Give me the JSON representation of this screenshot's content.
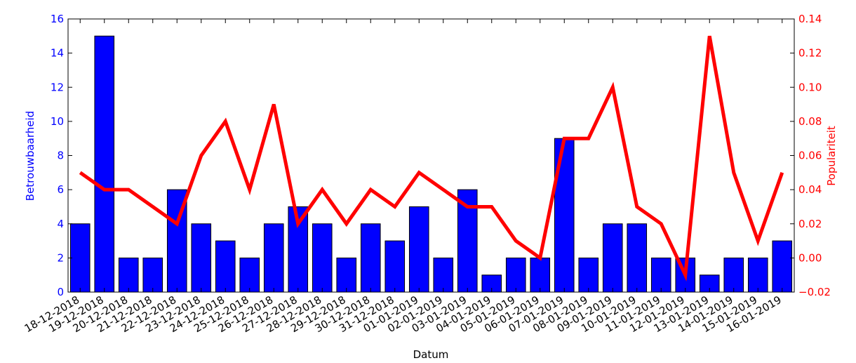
{
  "chart_data": {
    "type": "bar-line",
    "x": [
      "18-12-2018",
      "19-12-2018",
      "20-12-2018",
      "21-12-2018",
      "22-12-2018",
      "23-12-2018",
      "24-12-2018",
      "25-12-2018",
      "26-12-2018",
      "27-12-2018",
      "28-12-2018",
      "29-12-2018",
      "30-12-2018",
      "31-12-2018",
      "01-01-2019",
      "02-01-2019",
      "03-01-2019",
      "04-01-2019",
      "05-01-2019",
      "06-01-2019",
      "07-01-2019",
      "08-01-2019",
      "09-01-2019",
      "10-01-2019",
      "11-01-2019",
      "12-01-2019",
      "13-01-2019",
      "14-01-2019",
      "15-01-2019",
      "16-01-2019"
    ],
    "xlabel": "Datum",
    "ylabel": "Betrouwbaarheid",
    "y2label": "Populariteit",
    "series": [
      {
        "name": "Betrouwbaarheid",
        "kind": "bar",
        "color": "#0000ff",
        "values": [
          4,
          15,
          2,
          2,
          6,
          4,
          3,
          2,
          4,
          5,
          4,
          2,
          4,
          3,
          5,
          2,
          6,
          1,
          2,
          2,
          9,
          2,
          4,
          4,
          2,
          2,
          1,
          2,
          2,
          3
        ]
      },
      {
        "name": "Populariteit",
        "kind": "line",
        "axis": "y2",
        "color": "#ff0000",
        "values": [
          0.05,
          0.04,
          0.04,
          0.03,
          0.02,
          0.06,
          0.08,
          0.04,
          0.09,
          0.02,
          0.04,
          0.02,
          0.04,
          0.03,
          0.05,
          0.04,
          0.03,
          0.03,
          0.01,
          0.0,
          0.07,
          0.07,
          0.1,
          0.03,
          0.02,
          -0.01,
          0.13,
          0.05,
          0.01,
          0.05
        ]
      }
    ],
    "ylim": [
      0,
      16
    ],
    "yticks": [
      0,
      2,
      4,
      6,
      8,
      10,
      12,
      14,
      16
    ],
    "y2lim": [
      -0.02,
      0.14
    ],
    "y2ticks": [
      {
        "value": -0.02,
        "label": "−0.02"
      },
      {
        "value": 0,
        "label": "0.00"
      },
      0.02,
      0.04,
      0.06,
      0.08,
      {
        "value": 0.1,
        "label": "0.10"
      },
      0.12,
      0.14
    ]
  }
}
